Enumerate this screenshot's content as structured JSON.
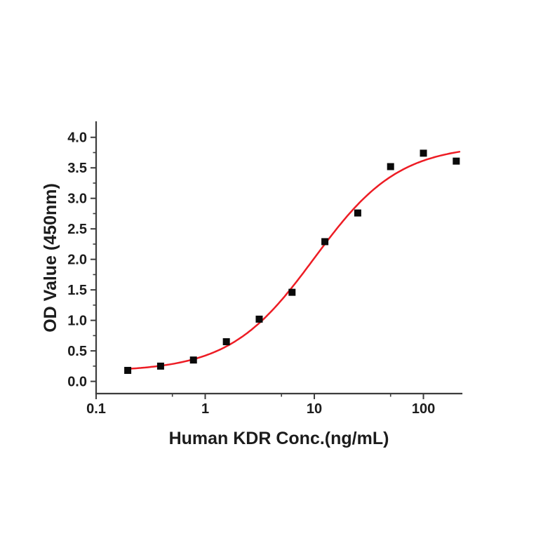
{
  "figure": {
    "background": "#ffffff",
    "description": "ELISA dose-response binding curve"
  },
  "chart_data": {
    "type": "scatter",
    "title": "",
    "xlabel": "Human KDR Conc.(ng/mL)",
    "ylabel": "OD Value (450nm)",
    "x_scale": "log",
    "y_scale": "linear",
    "xlim": [
      0.1,
      224
    ],
    "ylim": [
      -0.2,
      4.25
    ],
    "grid": false,
    "legend": null,
    "x_major_ticks": [
      0.1,
      1,
      10,
      100
    ],
    "x_major_tick_labels": [
      "0.1",
      "1",
      "10",
      "100"
    ],
    "x_minor_ticks": [
      0.5,
      5,
      50
    ],
    "y_major_ticks": [
      0.0,
      0.5,
      1.0,
      1.5,
      2.0,
      2.5,
      3.0,
      3.5,
      4.0
    ],
    "y_major_tick_labels": [
      "0.0",
      "0.5",
      "1.0",
      "1.5",
      "2.0",
      "2.5",
      "3.0",
      "3.5",
      "4.0"
    ],
    "y_minor_ticks": [
      0.25,
      0.75,
      1.25,
      1.75,
      2.25,
      2.75,
      3.25,
      3.75
    ],
    "points": {
      "x": [
        0.195,
        0.39,
        0.78,
        1.5625,
        3.125,
        6.25,
        12.5,
        25,
        50,
        100,
        200
      ],
      "y": [
        0.18,
        0.25,
        0.35,
        0.65,
        1.02,
        1.46,
        2.29,
        2.76,
        3.52,
        3.74,
        3.61
      ]
    },
    "fit_curve": {
      "model": "4PL",
      "bottom": 0.16,
      "top": 3.88,
      "ec50": 10,
      "hill": 1.12,
      "x_range": [
        0.19,
        214
      ]
    },
    "marker": {
      "shape": "square",
      "size": 10,
      "color": "#0a0a0a"
    },
    "colors": {
      "curve": "#ed1c24",
      "axis": "#3d3d3d",
      "text": "#1c1c1c"
    }
  }
}
